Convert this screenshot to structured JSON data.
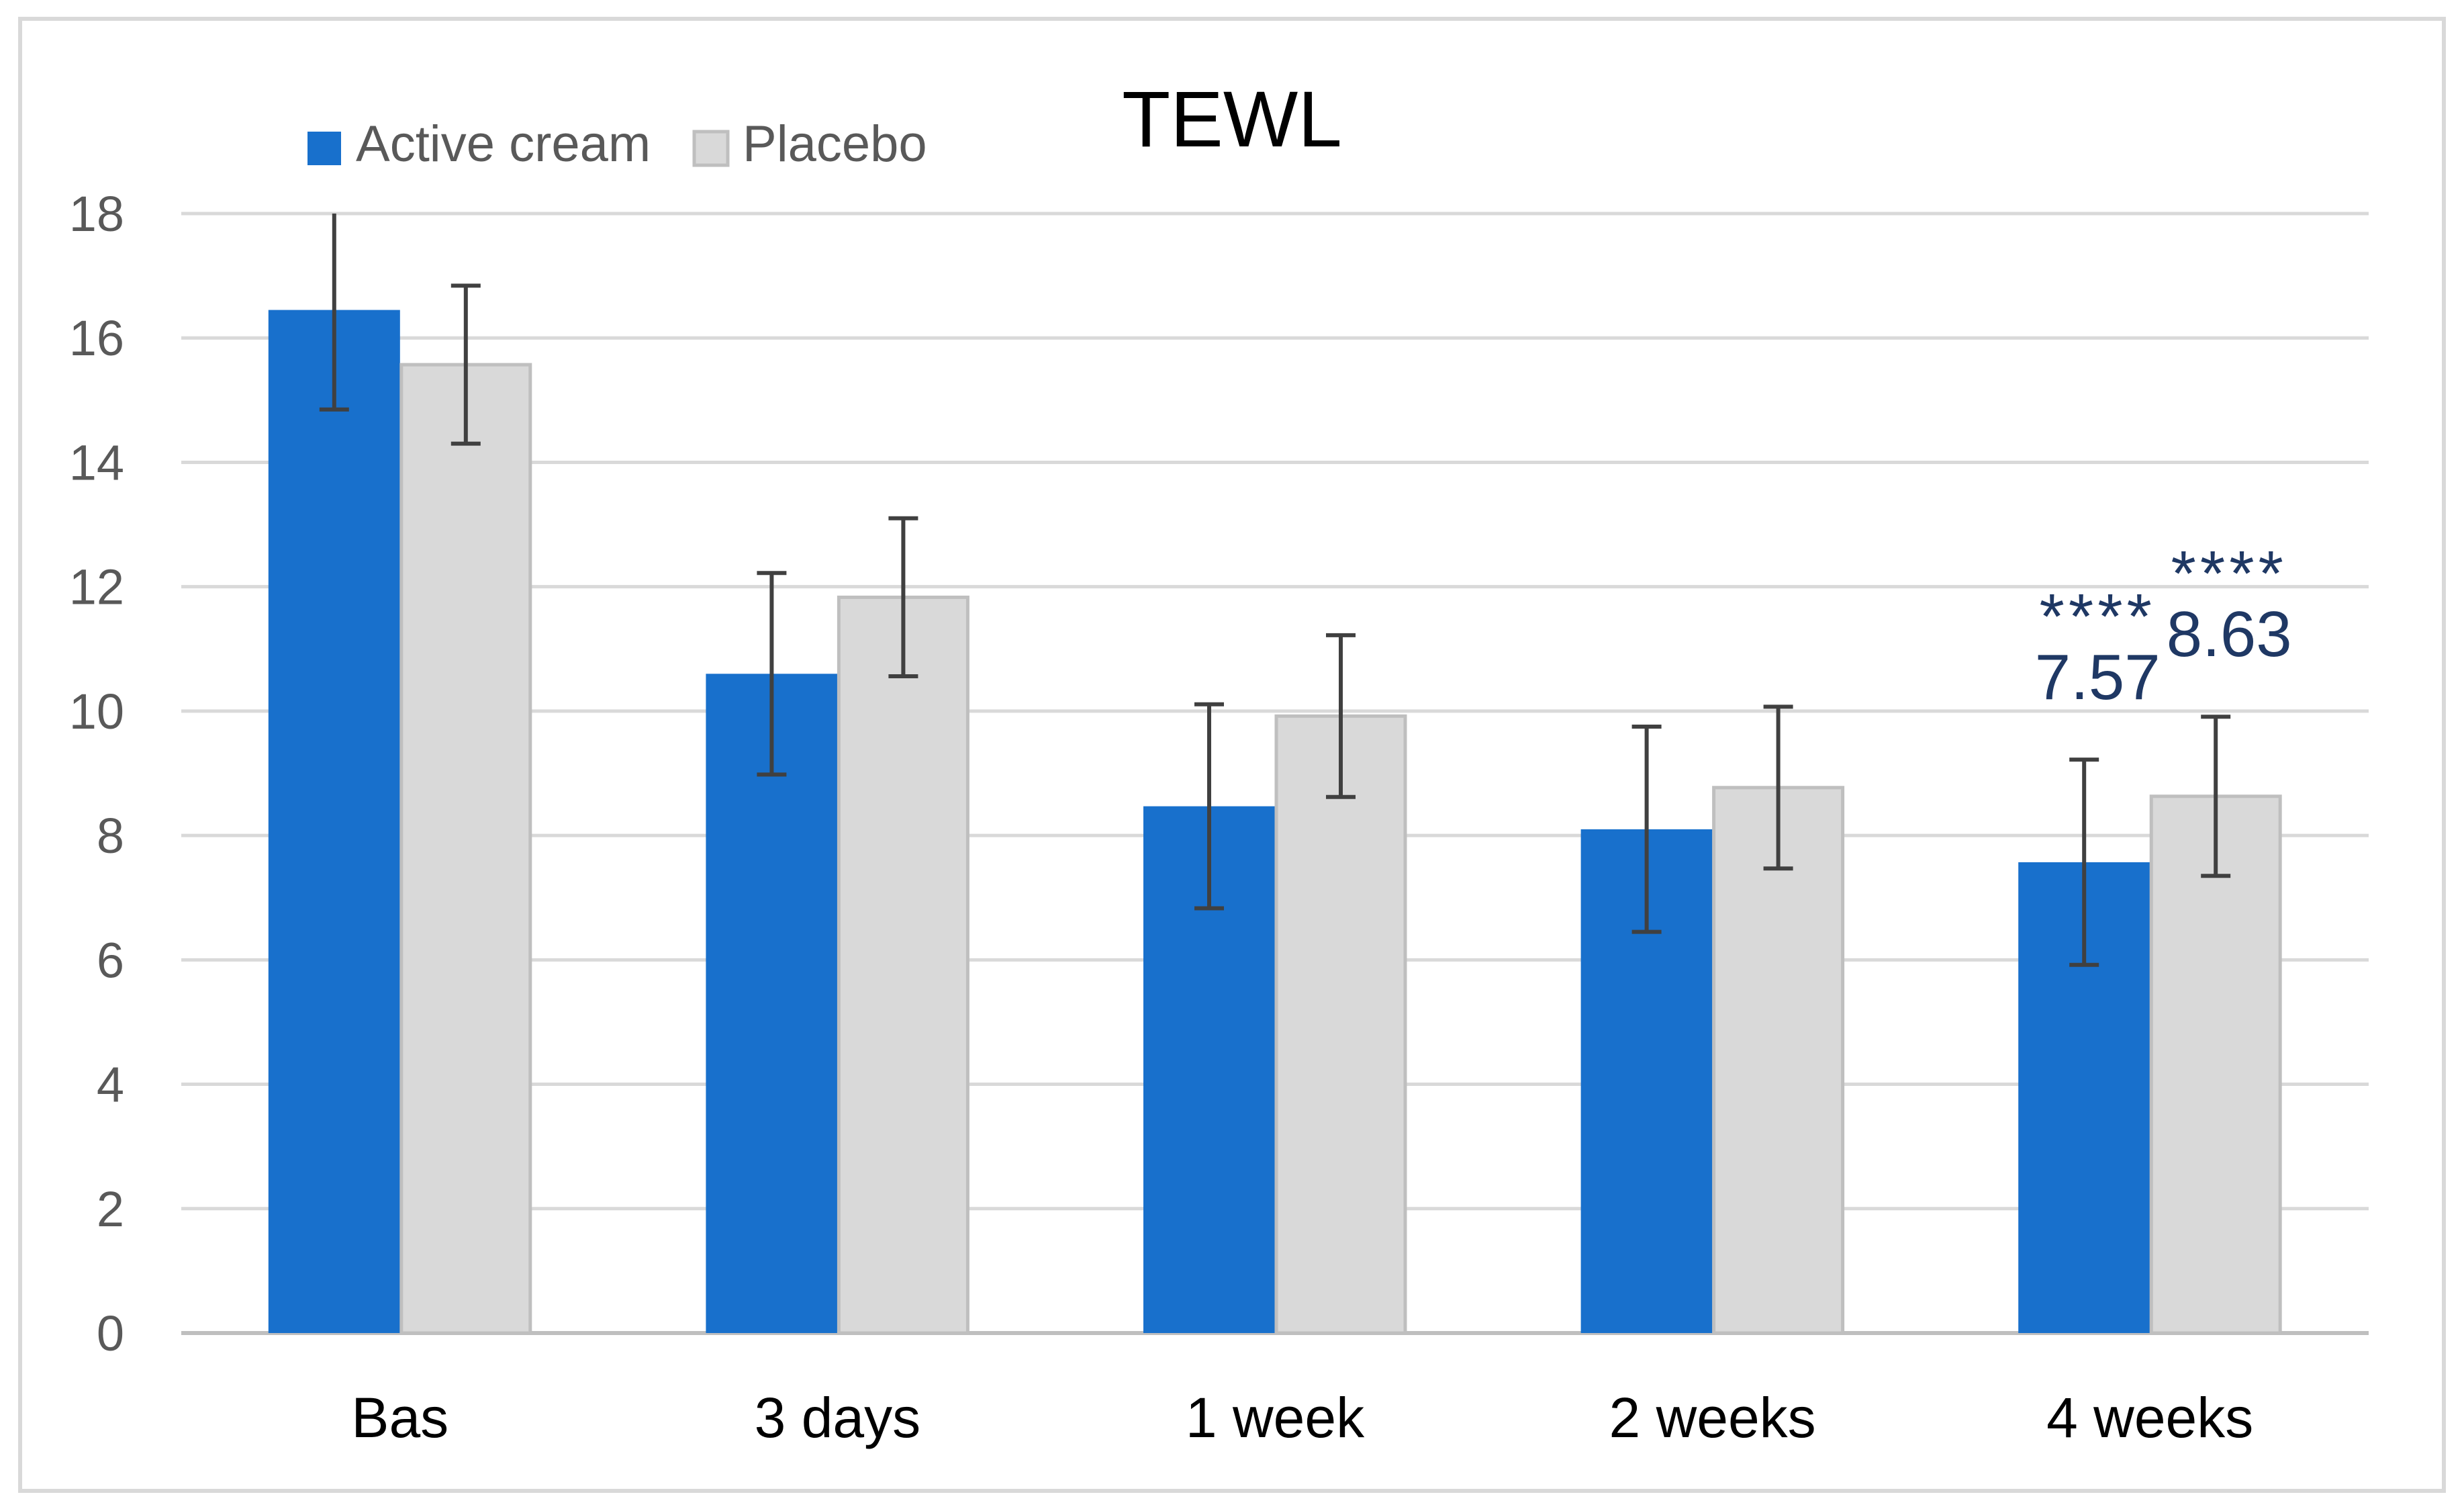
{
  "chart_data": {
    "type": "bar",
    "title": "TEWL",
    "xlabel": "",
    "ylabel": "",
    "categories": [
      "Bas",
      "3 days",
      "1 week",
      "2 weeks",
      "4 weeks"
    ],
    "ylim": [
      0,
      18
    ],
    "yticks": [
      0,
      2,
      4,
      6,
      8,
      10,
      12,
      14,
      16,
      18
    ],
    "grid": true,
    "legend_position": "top-left",
    "series": [
      {
        "name": "Active cream",
        "color": "#1870cc",
        "values": [
          16.45,
          10.6,
          8.47,
          8.1,
          7.57
        ],
        "error": [
          1.6,
          1.62,
          1.64,
          1.65,
          1.65
        ]
      },
      {
        "name": "Placebo",
        "color": "#d9d9d9",
        "values": [
          15.57,
          11.83,
          9.92,
          8.77,
          8.63
        ],
        "error": [
          1.27,
          1.27,
          1.3,
          1.3,
          1.28
        ]
      }
    ],
    "annotations": [
      {
        "category": "4 weeks",
        "series": "Active cream",
        "stars": "****",
        "label": "7.57"
      },
      {
        "category": "4 weeks",
        "series": "Placebo",
        "stars": "****",
        "label": "8.63"
      }
    ],
    "colors": {
      "grid": "#d9d9d9",
      "axis": "#bfbfbf",
      "frame": "#d9d9d9",
      "error_bar": "#404040",
      "placebo_edge": "#bfbfbf",
      "annotation": "#1f3864",
      "text": "#000000",
      "tick_text": "#595959"
    }
  }
}
